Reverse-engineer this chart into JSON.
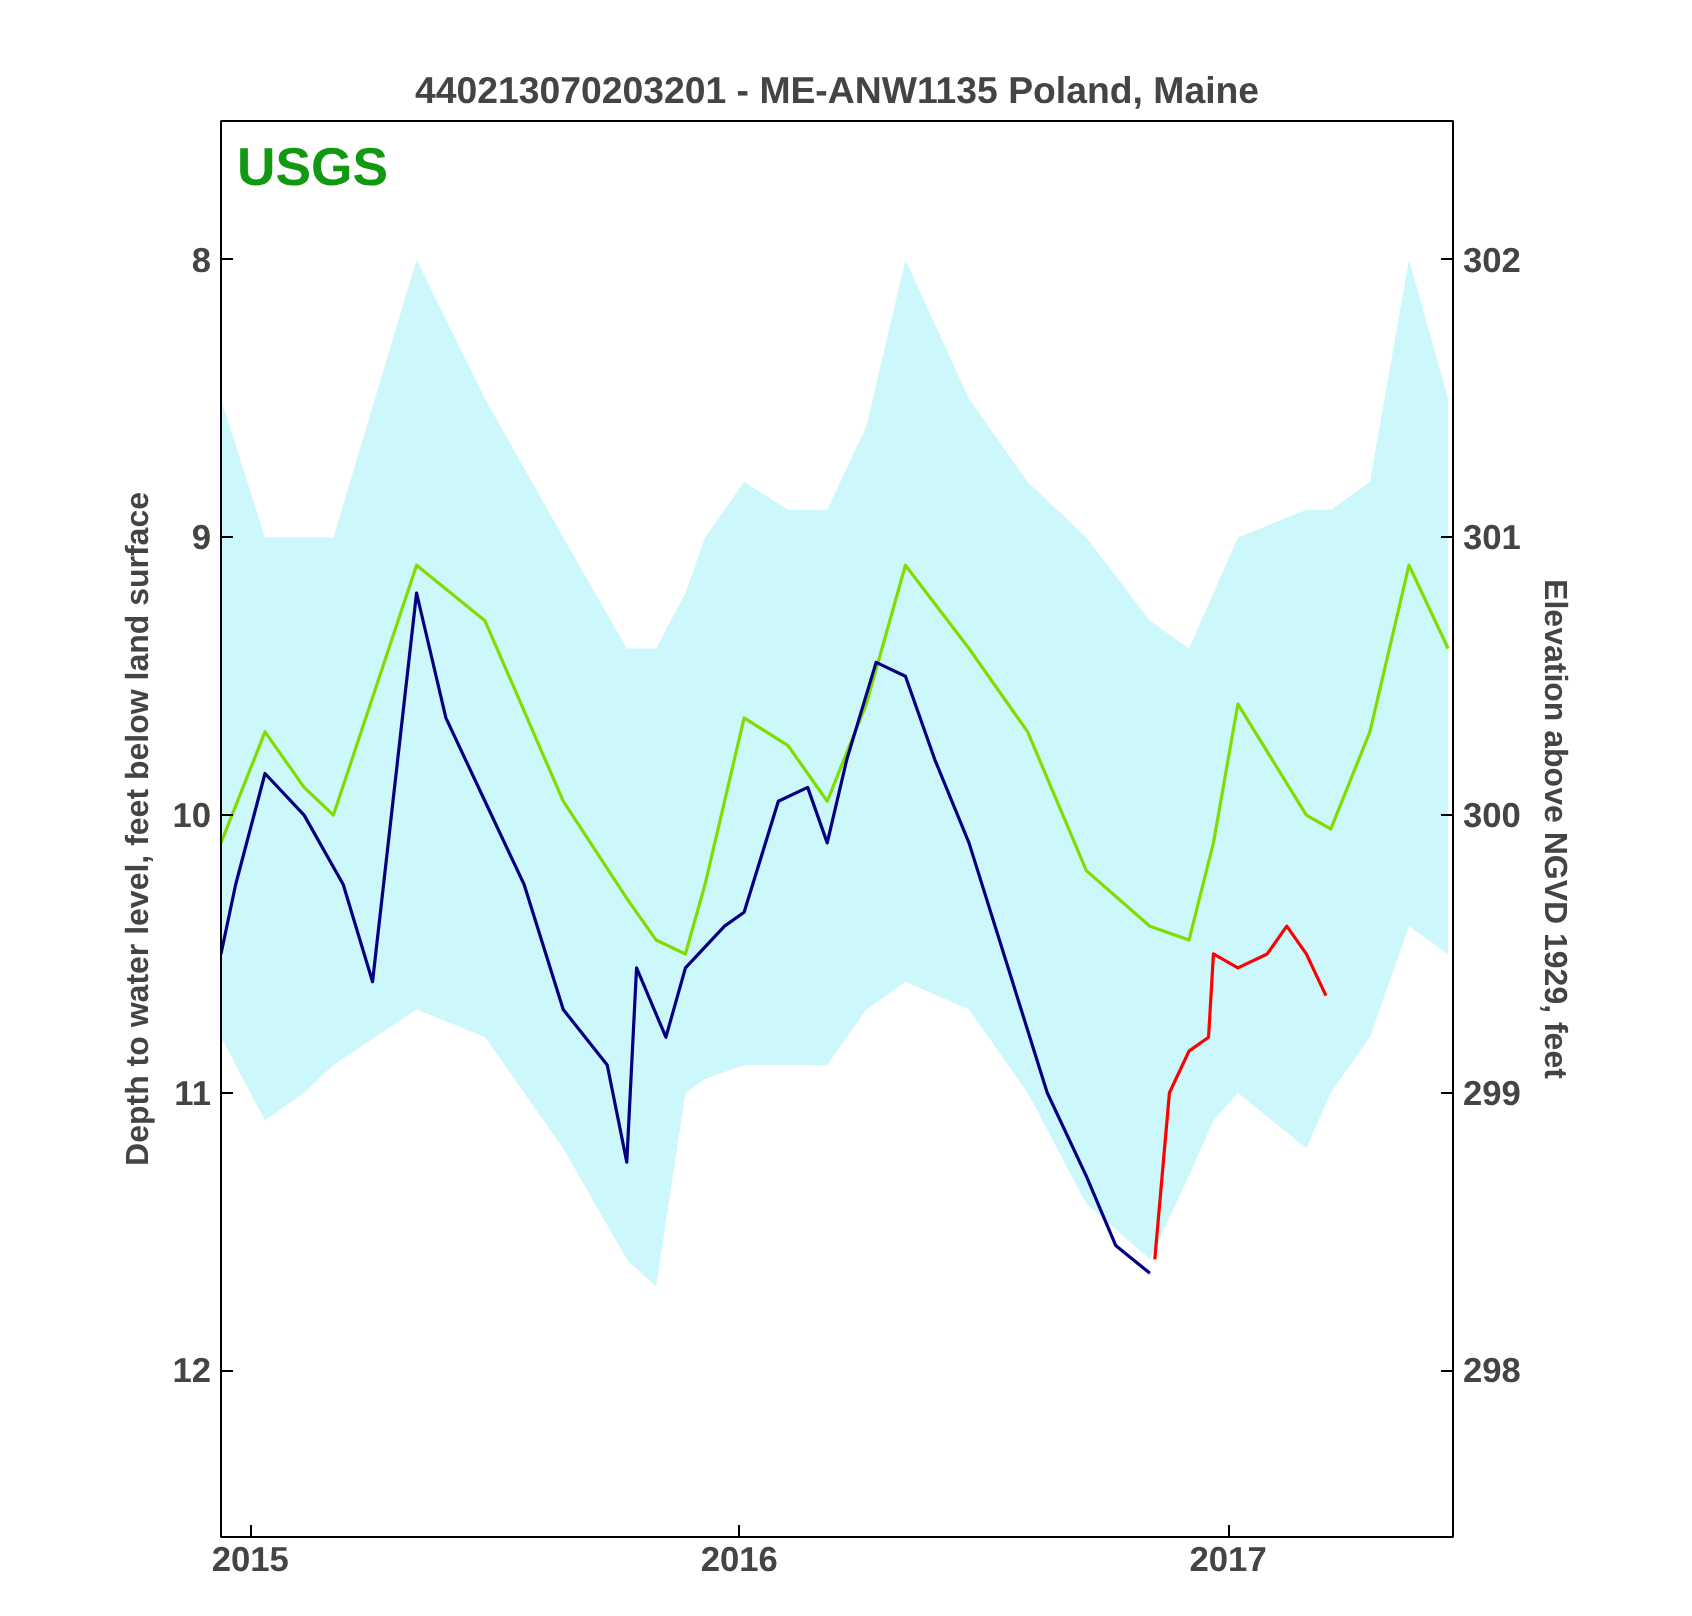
{
  "chart_data": {
    "type": "line",
    "title": "440213070203201 - ME-ANW1135 Poland, Maine",
    "ylabel": "Depth to water level, feet below land surface",
    "y2label": "Elevation above NGVD 1929, feet",
    "annotations": [
      "USGS"
    ],
    "xlim": [
      2014.94,
      2017.46
    ],
    "xticks": [
      2015,
      2016,
      2017
    ],
    "ylim": [
      12.6,
      7.5
    ],
    "yticks": [
      8,
      9,
      10,
      11,
      12
    ],
    "y2lim": [
      297.4,
      302.5
    ],
    "y2ticks": [
      298,
      299,
      300,
      301,
      302
    ],
    "grid": false,
    "line_style": "solid",
    "marker": "none",
    "series": [
      {
        "color": "#7fdd00",
        "x": [
          2014.94,
          2015.03,
          2015.11,
          2015.17,
          2015.34,
          2015.48,
          2015.64,
          2015.77,
          2015.83,
          2015.89,
          2015.93,
          2016.01,
          2016.1,
          2016.18,
          2016.26,
          2016.34,
          2016.47,
          2016.59,
          2016.71,
          2016.84,
          2016.92,
          2016.97,
          2017.02,
          2017.16,
          2017.21,
          2017.29,
          2017.37,
          2017.45
        ],
        "values": [
          10.1,
          9.7,
          9.9,
          10.0,
          9.1,
          9.3,
          9.95,
          10.3,
          10.45,
          10.5,
          10.25,
          9.65,
          9.75,
          9.95,
          9.6,
          9.1,
          9.4,
          9.7,
          10.2,
          10.4,
          10.45,
          10.1,
          9.6,
          10.0,
          10.05,
          9.7,
          9.1,
          9.4
        ],
        "lower": [
          8.5,
          9.0,
          9.0,
          9.0,
          8.0,
          8.5,
          9.0,
          9.4,
          9.4,
          9.2,
          9.0,
          8.8,
          8.9,
          8.9,
          8.6,
          8.0,
          8.5,
          8.8,
          9.0,
          9.3,
          9.4,
          9.2,
          9.0,
          8.9,
          8.9,
          8.8,
          8.0,
          8.5
        ],
        "upper": [
          10.8,
          11.1,
          11.0,
          10.9,
          10.7,
          10.8,
          11.2,
          11.6,
          11.7,
          11.0,
          10.95,
          10.9,
          10.9,
          10.9,
          10.7,
          10.6,
          10.7,
          11.0,
          11.4,
          11.6,
          11.3,
          11.1,
          11.0,
          11.2,
          11.0,
          10.8,
          10.4,
          10.5
        ]
      },
      {
        "color": "#000080",
        "x": [
          2014.94,
          2014.97,
          2015.03,
          2015.11,
          2015.19,
          2015.25,
          2015.34,
          2015.4,
          2015.48,
          2015.56,
          2015.64,
          2015.73,
          2015.77,
          2015.79,
          2015.85,
          2015.89,
          2015.97,
          2016.01,
          2016.08,
          2016.14,
          2016.18,
          2016.22,
          2016.28,
          2016.34,
          2016.4,
          2016.47,
          2016.55,
          2016.63,
          2016.71,
          2016.77,
          2016.84
        ],
        "values": [
          10.5,
          10.25,
          9.85,
          10.0,
          10.25,
          10.6,
          9.2,
          9.65,
          9.95,
          10.25,
          10.7,
          10.9,
          11.25,
          10.55,
          10.8,
          10.55,
          10.4,
          10.35,
          9.95,
          9.9,
          10.1,
          9.8,
          9.45,
          9.5,
          9.8,
          10.1,
          10.55,
          11.0,
          11.3,
          11.55,
          11.65
        ]
      },
      {
        "color": "#ff0000",
        "x": [
          2016.85,
          2016.88,
          2016.92,
          2016.96,
          2016.97,
          2017.02,
          2017.08,
          2017.12,
          2017.16,
          2017.2
        ],
        "values": [
          11.6,
          11.0,
          10.85,
          10.8,
          10.5,
          10.55,
          10.5,
          10.4,
          10.5,
          10.65
        ]
      }
    ]
  }
}
